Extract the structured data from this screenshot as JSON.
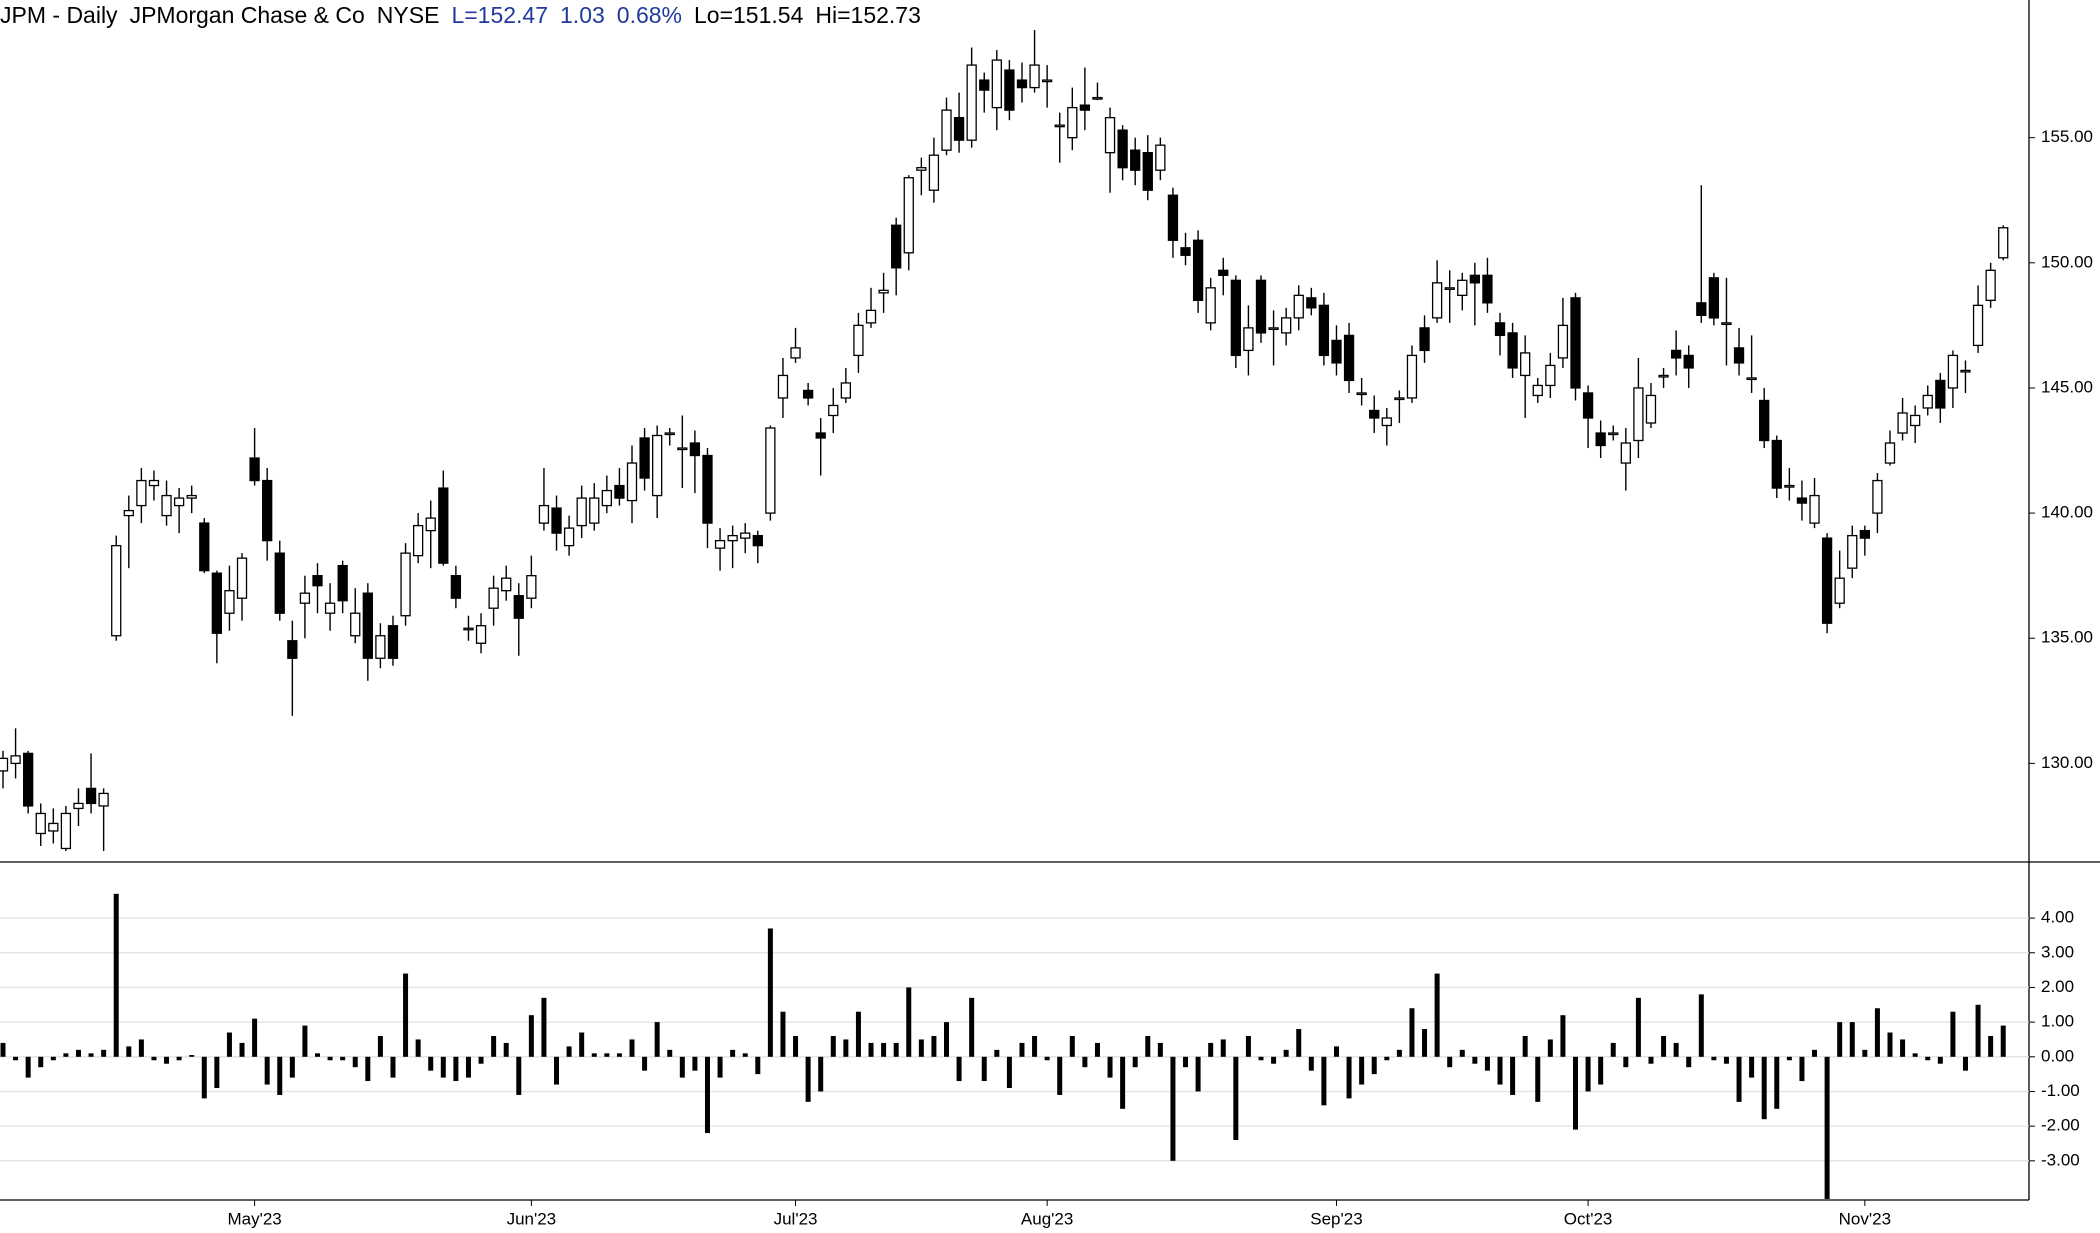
{
  "header": {
    "symbol": "JPM - Daily",
    "name": "JPMorgan Chase & Co",
    "exchange": "NYSE",
    "last": "L=152.47",
    "change": "1.03",
    "change_percent": "0.68%",
    "low": "Lo=151.54",
    "high": "Hi=152.73"
  },
  "chart_data": [
    {
      "type": "candlestick",
      "categories": [
        null,
        null,
        null,
        null,
        null,
        null,
        null,
        null,
        null,
        null,
        null,
        null,
        null,
        null,
        null,
        null,
        null,
        null,
        null,
        null,
        "May'23",
        null,
        null,
        null,
        null,
        null,
        null,
        null,
        null,
        null,
        null,
        null,
        null,
        null,
        null,
        null,
        null,
        null,
        null,
        null,
        null,
        null,
        "Jun'23",
        null,
        null,
        null,
        null,
        null,
        null,
        null,
        null,
        null,
        null,
        null,
        null,
        null,
        null,
        null,
        null,
        null,
        null,
        null,
        null,
        "Jul'23",
        null,
        null,
        null,
        null,
        null,
        null,
        null,
        null,
        null,
        null,
        null,
        null,
        null,
        null,
        null,
        null,
        null,
        null,
        null,
        "Aug'23",
        null,
        null,
        null,
        null,
        null,
        null,
        null,
        null,
        null,
        null,
        null,
        null,
        null,
        null,
        null,
        null,
        null,
        null,
        null,
        null,
        null,
        null,
        "Sep'23",
        null,
        null,
        null,
        null,
        null,
        null,
        null,
        null,
        null,
        null,
        null,
        null,
        null,
        null,
        null,
        null,
        null,
        null,
        null,
        "Oct'23",
        null,
        null,
        null,
        null,
        null,
        null,
        null,
        null,
        null,
        null,
        null,
        null,
        null,
        null,
        null,
        null,
        null,
        null,
        null,
        null,
        null,
        "Nov'23",
        null,
        null,
        null,
        null,
        null,
        null,
        null,
        null,
        null,
        null,
        null
      ],
      "open": [
        129.7,
        130.0,
        130.4,
        127.2,
        127.3,
        126.6,
        128.2,
        129.0,
        128.3,
        135.1,
        139.9,
        140.3,
        141.1,
        139.9,
        140.3,
        140.6,
        139.6,
        137.6,
        136.0,
        136.6,
        142.2,
        141.3,
        138.4,
        134.9,
        136.4,
        137.5,
        136.0,
        137.9,
        135.1,
        136.8,
        134.2,
        135.5,
        135.9,
        138.3,
        139.3,
        141.0,
        137.5,
        135.4,
        134.8,
        136.2,
        136.9,
        136.7,
        136.6,
        139.6,
        140.2,
        138.7,
        139.5,
        139.6,
        140.3,
        141.1,
        140.5,
        143.0,
        140.7,
        143.2,
        142.6,
        142.8,
        142.3,
        138.6,
        138.9,
        139.0,
        139.1,
        140.0,
        144.6,
        146.2,
        144.9,
        143.2,
        143.9,
        144.6,
        146.3,
        147.6,
        148.8,
        151.5,
        150.4,
        153.7,
        152.9,
        154.5,
        155.8,
        154.9,
        157.3,
        156.2,
        157.7,
        157.3,
        157.0,
        157.3,
        155.5,
        155.0,
        156.3,
        156.6,
        154.4,
        155.3,
        154.5,
        154.4,
        153.7,
        152.7,
        150.6,
        150.9,
        147.6,
        149.7,
        149.3,
        146.5,
        149.3,
        147.4,
        147.2,
        147.8,
        148.6,
        148.3,
        146.9,
        147.1,
        144.8,
        144.1,
        143.5,
        144.6,
        144.6,
        147.4,
        147.8,
        149.0,
        148.7,
        149.5,
        149.5,
        147.6,
        147.2,
        145.5,
        144.7,
        145.1,
        146.2,
        148.6,
        144.8,
        143.2,
        143.2,
        142.0,
        142.9,
        143.6,
        145.5,
        146.5,
        146.3,
        148.4,
        149.4,
        147.6,
        146.6,
        145.4,
        144.5,
        142.9,
        141.1,
        140.6,
        139.6,
        139.0,
        136.4,
        137.8,
        139.3,
        140.0,
        142.0,
        143.2,
        143.5,
        144.2,
        145.3,
        145.0,
        145.7,
        146.7,
        148.5,
        150.2
      ],
      "high": [
        130.5,
        131.4,
        130.5,
        128.4,
        128.2,
        128.3,
        129.0,
        130.4,
        129.0,
        139.1,
        140.7,
        141.8,
        141.7,
        141.3,
        141.0,
        141.1,
        139.8,
        137.7,
        137.9,
        138.4,
        143.4,
        141.8,
        138.9,
        135.7,
        137.5,
        138.0,
        137.2,
        138.1,
        137.0,
        137.2,
        135.6,
        135.9,
        138.8,
        140.0,
        140.5,
        141.7,
        137.9,
        135.9,
        136.0,
        137.5,
        137.9,
        137.2,
        138.3,
        141.8,
        140.7,
        139.9,
        141.1,
        141.2,
        141.5,
        141.8,
        142.7,
        143.4,
        143.5,
        143.4,
        143.9,
        143.3,
        142.6,
        139.4,
        139.5,
        139.6,
        139.3,
        143.5,
        146.2,
        147.4,
        145.2,
        143.8,
        145.0,
        145.8,
        148.0,
        149.0,
        149.6,
        151.8,
        153.5,
        154.2,
        155.0,
        156.6,
        156.8,
        158.6,
        157.6,
        158.5,
        158.1,
        158.0,
        159.3,
        157.9,
        156.0,
        157.0,
        157.8,
        157.2,
        156.2,
        155.5,
        155.0,
        155.1,
        155.0,
        153.0,
        151.2,
        151.3,
        149.4,
        150.2,
        149.5,
        148.3,
        149.5,
        148.1,
        148.2,
        149.1,
        149.0,
        148.8,
        147.5,
        147.6,
        145.4,
        144.7,
        144.2,
        144.9,
        146.7,
        147.9,
        150.1,
        149.7,
        149.6,
        150.0,
        150.2,
        148.0,
        147.6,
        147.1,
        145.4,
        146.4,
        148.6,
        148.8,
        145.1,
        143.7,
        143.5,
        143.4,
        146.2,
        145.2,
        145.8,
        147.3,
        146.7,
        153.1,
        149.6,
        149.4,
        147.4,
        147.1,
        145.0,
        143.1,
        141.8,
        141.3,
        141.4,
        139.2,
        138.5,
        139.5,
        139.5,
        141.6,
        143.3,
        144.6,
        144.3,
        145.1,
        145.6,
        146.5,
        146.1,
        149.1,
        150.0,
        151.5
      ],
      "low": [
        129.0,
        129.4,
        128.0,
        126.7,
        126.8,
        126.5,
        127.5,
        128.0,
        126.5,
        134.9,
        137.8,
        139.6,
        140.5,
        139.5,
        139.2,
        140.0,
        137.6,
        134.0,
        135.3,
        135.7,
        141.1,
        138.1,
        135.7,
        131.9,
        135.0,
        136.0,
        135.3,
        136.0,
        134.8,
        133.3,
        133.8,
        133.9,
        135.5,
        138.0,
        137.8,
        137.9,
        136.2,
        134.9,
        134.4,
        135.5,
        136.5,
        134.3,
        136.2,
        139.3,
        138.5,
        138.3,
        139.0,
        139.3,
        140.0,
        140.3,
        139.6,
        140.9,
        139.8,
        142.7,
        141.0,
        140.8,
        138.6,
        137.7,
        137.8,
        138.4,
        138.0,
        139.7,
        143.8,
        146.0,
        144.3,
        141.5,
        143.2,
        144.4,
        145.6,
        147.4,
        148.0,
        148.7,
        149.7,
        152.7,
        152.4,
        154.3,
        154.4,
        154.6,
        156.0,
        155.3,
        155.7,
        156.4,
        156.8,
        156.2,
        154.0,
        154.5,
        155.3,
        156.5,
        152.8,
        153.3,
        153.1,
        152.5,
        153.3,
        150.2,
        149.9,
        148.0,
        147.3,
        148.7,
        145.8,
        145.5,
        146.8,
        145.9,
        146.7,
        147.3,
        147.9,
        145.9,
        145.5,
        144.8,
        144.3,
        143.2,
        142.7,
        143.6,
        144.4,
        146.0,
        147.6,
        147.6,
        148.1,
        147.5,
        148.0,
        146.3,
        145.4,
        143.8,
        144.4,
        144.6,
        145.8,
        144.5,
        142.6,
        142.2,
        142.9,
        140.9,
        142.2,
        143.4,
        145.0,
        145.5,
        145.0,
        147.6,
        147.5,
        145.9,
        145.5,
        144.8,
        142.6,
        140.6,
        140.5,
        139.7,
        139.4,
        135.2,
        136.2,
        137.4,
        138.3,
        139.2,
        141.9,
        142.9,
        142.8,
        143.9,
        143.6,
        144.2,
        144.8,
        146.4,
        148.2,
        150.1
      ],
      "close": [
        130.2,
        130.3,
        128.3,
        128.0,
        127.6,
        128.0,
        128.4,
        128.4,
        128.8,
        138.7,
        140.1,
        141.3,
        141.3,
        140.7,
        140.6,
        140.7,
        137.7,
        135.2,
        136.9,
        138.2,
        141.3,
        138.9,
        136.0,
        134.2,
        136.8,
        137.1,
        136.4,
        136.5,
        136.0,
        134.2,
        135.1,
        134.2,
        138.4,
        139.5,
        139.8,
        138.0,
        136.6,
        135.4,
        135.5,
        137.0,
        137.4,
        135.8,
        137.5,
        140.3,
        139.2,
        139.4,
        140.6,
        140.6,
        140.9,
        140.6,
        142.0,
        141.4,
        143.1,
        143.2,
        142.6,
        142.3,
        139.6,
        138.9,
        139.1,
        139.2,
        138.7,
        143.4,
        145.5,
        146.6,
        144.6,
        143.0,
        144.3,
        145.2,
        147.5,
        148.1,
        148.9,
        149.8,
        153.4,
        153.8,
        154.3,
        156.1,
        154.9,
        157.9,
        156.9,
        158.1,
        156.1,
        157.0,
        157.9,
        157.3,
        155.5,
        156.2,
        156.1,
        156.6,
        155.8,
        153.8,
        153.7,
        152.9,
        154.7,
        150.9,
        150.3,
        148.5,
        149.0,
        149.5,
        146.3,
        147.4,
        147.2,
        147.4,
        147.8,
        148.7,
        148.2,
        146.3,
        146.0,
        145.3,
        144.8,
        143.8,
        143.8,
        144.6,
        146.3,
        146.5,
        149.2,
        149.0,
        149.3,
        149.2,
        148.4,
        147.1,
        145.8,
        146.4,
        145.1,
        145.9,
        147.5,
        145.0,
        143.8,
        142.7,
        143.2,
        142.8,
        145.0,
        144.7,
        145.5,
        146.2,
        145.8,
        147.9,
        147.8,
        147.6,
        146.0,
        145.4,
        142.9,
        141.0,
        141.1,
        140.4,
        140.7,
        135.6,
        137.4,
        139.1,
        139.0,
        141.3,
        142.8,
        144.0,
        143.9,
        144.7,
        144.2,
        146.3,
        145.7,
        148.3,
        149.7,
        151.4
      ],
      "up_color": "#ffffff",
      "down_color": "#000000",
      "ylim": [
        126.1,
        160.5
      ],
      "yticks": [
        {
          "value": 130,
          "label": "130.00"
        },
        {
          "value": 135,
          "label": "135.00"
        },
        {
          "value": 140,
          "label": "140.00"
        },
        {
          "value": 145,
          "label": "145.00"
        },
        {
          "value": 150,
          "label": "150.00"
        },
        {
          "value": 155,
          "label": "155.00"
        }
      ],
      "grid": false
    },
    {
      "type": "bar",
      "values": [
        0.4,
        -0.1,
        -0.6,
        -0.3,
        -0.1,
        0.1,
        0.2,
        0.1,
        0.2,
        4.7,
        0.3,
        0.5,
        -0.1,
        -0.2,
        -0.1,
        0.05,
        -1.2,
        -0.9,
        0.7,
        0.4,
        1.1,
        -0.8,
        -1.1,
        -0.6,
        0.9,
        0.1,
        -0.1,
        -0.1,
        -0.3,
        -0.7,
        0.6,
        -0.6,
        2.4,
        0.5,
        -0.4,
        -0.6,
        -0.7,
        -0.6,
        -0.2,
        0.6,
        0.4,
        -1.1,
        1.2,
        1.7,
        -0.8,
        0.3,
        0.7,
        0.1,
        0.1,
        0.1,
        0.5,
        -0.4,
        1.0,
        0.2,
        -0.6,
        -0.4,
        -2.2,
        -0.6,
        0.2,
        0.1,
        -0.5,
        3.7,
        1.3,
        0.6,
        -1.3,
        -1.0,
        0.6,
        0.5,
        1.3,
        0.4,
        0.4,
        0.4,
        2.0,
        0.5,
        0.6,
        1.0,
        -0.7,
        1.7,
        -0.7,
        0.2,
        -0.9,
        0.4,
        0.6,
        -0.1,
        -1.1,
        0.6,
        -0.3,
        0.4,
        -0.6,
        -1.5,
        -0.3,
        0.6,
        0.4,
        -3.0,
        -0.3,
        -1.0,
        0.4,
        0.5,
        -2.4,
        0.6,
        -0.1,
        -0.2,
        0.2,
        0.8,
        -0.4,
        -1.4,
        0.3,
        -1.2,
        -0.8,
        -0.5,
        -0.1,
        0.2,
        1.4,
        0.8,
        2.4,
        -0.3,
        0.2,
        -0.2,
        -0.4,
        -0.8,
        -1.1,
        0.6,
        -1.3,
        0.5,
        1.2,
        -2.1,
        -1.0,
        -0.8,
        0.4,
        -0.3,
        1.7,
        -0.2,
        0.6,
        0.4,
        -0.3,
        1.8,
        -0.1,
        -0.2,
        -1.3,
        -0.6,
        -1.8,
        -1.5,
        -0.1,
        -0.7,
        0.2,
        -4.1,
        1.0,
        1.0,
        0.2,
        1.4,
        0.7,
        0.5,
        0.1,
        -0.1,
        -0.2,
        1.3,
        -0.4,
        1.5,
        0.6,
        0.9
      ],
      "color": "#000000",
      "ylim": [
        -4.13,
        5.56
      ],
      "yticks": [
        {
          "value": -3,
          "label": "-3.00"
        },
        {
          "value": -2,
          "label": "-2.00"
        },
        {
          "value": -1,
          "label": "-1.00"
        },
        {
          "value": 0,
          "label": "0.00"
        },
        {
          "value": 1,
          "label": "1.00"
        },
        {
          "value": 2,
          "label": "2.00"
        },
        {
          "value": 3,
          "label": "3.00"
        },
        {
          "value": 4,
          "label": "4.00"
        }
      ],
      "grid": true
    }
  ]
}
